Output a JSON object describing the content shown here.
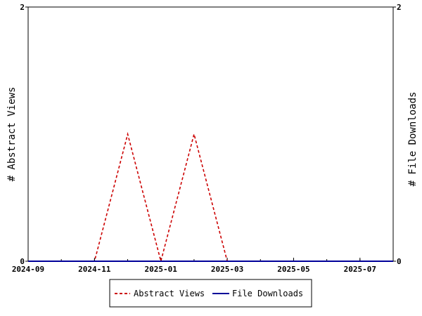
{
  "chart_data": {
    "type": "line",
    "x_ticks": [
      "2024-09",
      "2024-11",
      "2025-01",
      "2025-03",
      "2025-05",
      "2025-07"
    ],
    "x_range": [
      "2024-09",
      "2025-08"
    ],
    "months": [
      "2024-09",
      "2024-10",
      "2024-11",
      "2024-12",
      "2025-01",
      "2025-02",
      "2025-03",
      "2025-04",
      "2025-05",
      "2025-06",
      "2025-07",
      "2025-08"
    ],
    "ylim_left": [
      0,
      2
    ],
    "ylim_right": [
      0,
      2
    ],
    "y_ticks_left": [
      "0",
      "2"
    ],
    "y_ticks_right": [
      "0",
      "2"
    ],
    "ylabel_left": "# Abstract Views",
    "ylabel_right": "# File Downloads",
    "grid": false,
    "legend_position": "bottom",
    "series": [
      {
        "name": "Abstract Views",
        "color": "#cc0000",
        "style": "dashed",
        "axis": "left",
        "values": [
          0,
          0,
          0,
          1,
          0,
          1,
          0,
          0,
          0,
          0,
          0,
          0
        ]
      },
      {
        "name": "File Downloads",
        "color": "#000099",
        "style": "solid",
        "axis": "right",
        "values": [
          0,
          0,
          0,
          0,
          0,
          0,
          0,
          0,
          0,
          0,
          0,
          0
        ]
      }
    ]
  }
}
